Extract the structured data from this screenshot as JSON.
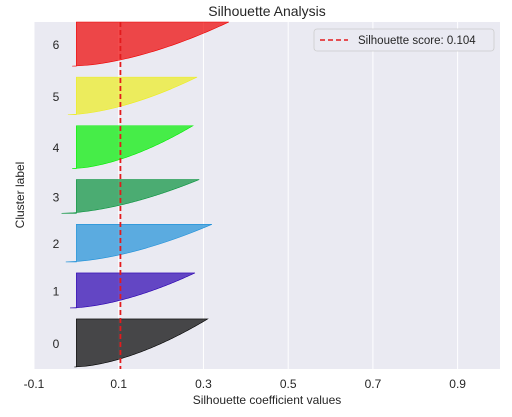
{
  "chart_data": {
    "type": "area",
    "title": "Silhouette Analysis",
    "xlabel": "Silhouette coefficient values",
    "ylabel": "Cluster label",
    "xlim": [
      -0.1,
      1.0
    ],
    "xticks": [
      -0.1,
      0.1,
      0.3,
      0.5,
      0.7,
      0.9
    ],
    "xtick_labels": [
      "-0.1",
      "0.1",
      "0.3",
      "0.5",
      "0.7",
      "0.9"
    ],
    "grid": true,
    "background": "#eaeaf2",
    "avg_line": {
      "value": 0.104,
      "color": "#e31a1c",
      "style": "dashed"
    },
    "legend": {
      "label": "Silhouette score: 0.104",
      "placement": "top-right"
    },
    "clusters": [
      {
        "label": "0",
        "color": "#000000",
        "min": -0.005,
        "max": 0.31,
        "size": 0.37
      },
      {
        "label": "1",
        "color": "#2a00b0",
        "min": -0.015,
        "max": 0.28,
        "size": 0.27
      },
      {
        "label": "2",
        "color": "#1e90d8",
        "min": -0.025,
        "max": 0.32,
        "size": 0.29
      },
      {
        "label": "3",
        "color": "#07923c",
        "min": -0.035,
        "max": 0.29,
        "size": 0.26
      },
      {
        "label": "4",
        "color": "#00ee00",
        "min": -0.01,
        "max": 0.275,
        "size": 0.33
      },
      {
        "label": "5",
        "color": "#eded1e",
        "min": -0.02,
        "max": 0.285,
        "size": 0.29
      },
      {
        "label": "6",
        "color": "#ee0000",
        "min": -0.01,
        "max": 0.36,
        "size": 0.34
      }
    ]
  }
}
